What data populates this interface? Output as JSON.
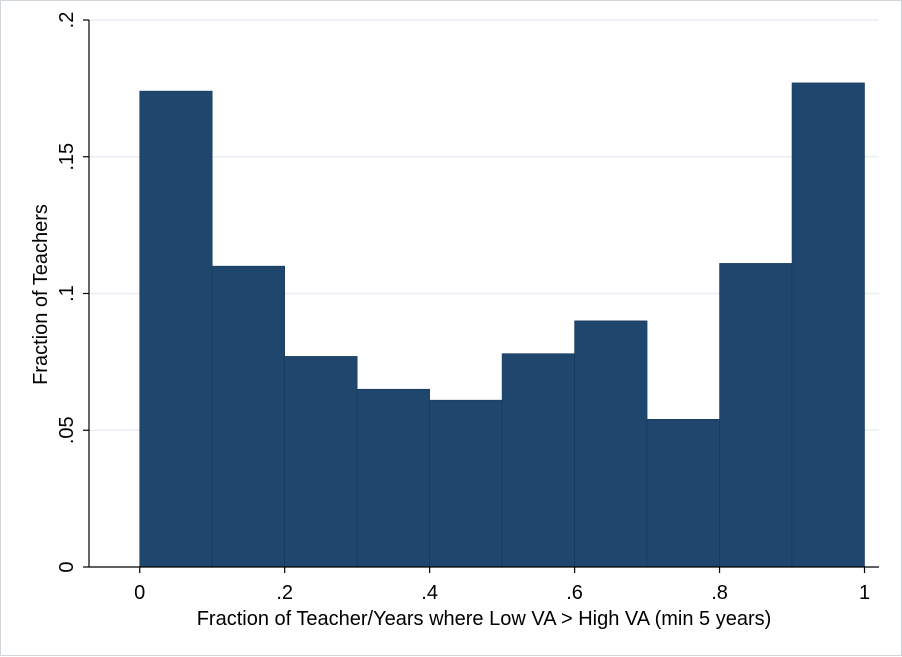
{
  "chart_data": {
    "type": "bar",
    "title": "",
    "xlabel": "Fraction of Teacher/Years where Low VA > High VA (min 5 years)",
    "ylabel": "Fraction of Teachers",
    "bin_edges": [
      0,
      0.1,
      0.2,
      0.3,
      0.4,
      0.5,
      0.6,
      0.7,
      0.8,
      0.9,
      1.0
    ],
    "values": [
      0.174,
      0.11,
      0.077,
      0.065,
      0.061,
      0.078,
      0.09,
      0.054,
      0.111,
      0.177
    ],
    "xlim": [
      -0.07,
      1.02
    ],
    "ylim": [
      0,
      0.2
    ],
    "x_ticks": [
      0,
      0.2,
      0.4,
      0.6,
      0.8,
      1
    ],
    "x_tick_labels": [
      "0",
      ".2",
      ".4",
      ".6",
      ".8",
      "1"
    ],
    "y_ticks": [
      0,
      0.05,
      0.1,
      0.15,
      0.2
    ],
    "y_tick_labels": [
      "0",
      ".05",
      ".1",
      ".15",
      ".2"
    ],
    "grid": true,
    "bar_color": "#1f476e",
    "grid_color": "#e8eef3"
  }
}
